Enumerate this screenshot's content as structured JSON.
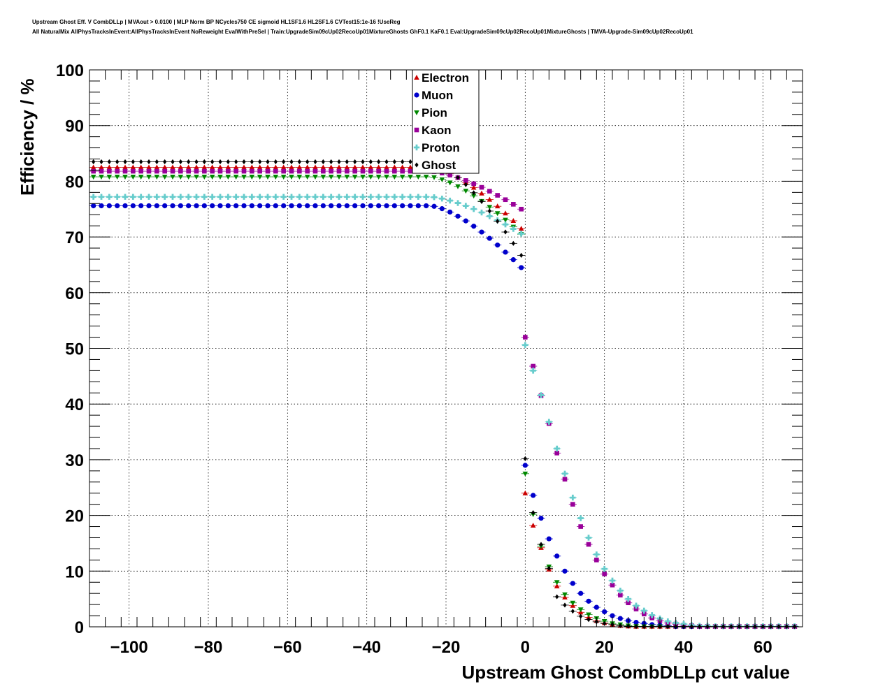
{
  "chart_data": {
    "type": "scatter",
    "title_lines": [
      "Upstream Ghost Eff. V CombDLLp | MVAout > 0.0100 | MLP Norm BP NCycles750 CE sigmoid HL1SF1.6 HL2SF1.6 CVTest15:1e-16 !UseReg",
      "All NaturalMix AllPhysTracksInEvent:AllPhysTracksInEvent NoReweight EvalWithPreSel | Train:UpgradeSim09cUp02RecoUp01MixtureGhosts GhF0.1 KaF0.1 Eval:UpgradeSim09cUp02RecoUp01MixtureGhosts | TMVA-Upgrade-Sim09cUp02RecoUp01"
    ],
    "xlabel": "Upstream Ghost CombDLLp cut value",
    "ylabel": "Efficiency / %",
    "xlim": [
      -110,
      70
    ],
    "ylim": [
      0,
      100
    ],
    "xticks": [
      -100,
      -80,
      -60,
      -40,
      -20,
      0,
      20,
      40,
      60
    ],
    "xtick_labels": [
      "−100",
      "−80",
      "−60",
      "−40",
      "−20",
      "0",
      "20",
      "40",
      "60"
    ],
    "yticks": [
      0,
      10,
      20,
      30,
      40,
      50,
      60,
      70,
      80,
      90,
      100
    ],
    "ytick_labels": [
      "0",
      "10",
      "20",
      "30",
      "40",
      "50",
      "60",
      "70",
      "80",
      "90",
      "100"
    ],
    "grid": true,
    "legend_position": "top-center",
    "series": [
      {
        "name": "Electron",
        "color": "#cc0000",
        "marker": "triangle-up",
        "plateau": 82.5,
        "knee": -24,
        "edge_value": 71.5,
        "y0": 24.0,
        "tail_decay": 3.4,
        "tail_mult": 0.79,
        "tail_points": [
          [
            2,
            18.2
          ],
          [
            4,
            14.2
          ],
          [
            6,
            10.3
          ],
          [
            8,
            7.3
          ],
          [
            10,
            5.3
          ],
          [
            12,
            3.8
          ],
          [
            14,
            2.6
          ],
          [
            16,
            1.7
          ],
          [
            18,
            1.1
          ],
          [
            20,
            0.7
          ],
          [
            22,
            0.4
          ],
          [
            24,
            0.2
          ],
          [
            26,
            0.1
          ]
        ]
      },
      {
        "name": "Muon",
        "color": "#0000cc",
        "marker": "circle",
        "plateau": 75.6,
        "knee": -24,
        "edge_value": 64.5,
        "y0": 29.0,
        "tail_decay": 4.5,
        "tail_mult": 0.81,
        "tail_points": [
          [
            2,
            23.6
          ],
          [
            4,
            19.5
          ],
          [
            6,
            15.8
          ],
          [
            8,
            12.7
          ],
          [
            10,
            10.0
          ],
          [
            12,
            7.8
          ],
          [
            14,
            6.0
          ],
          [
            16,
            4.6
          ],
          [
            18,
            3.5
          ],
          [
            20,
            2.7
          ],
          [
            22,
            2.0
          ],
          [
            24,
            1.5
          ],
          [
            26,
            1.1
          ],
          [
            28,
            0.8
          ],
          [
            30,
            0.6
          ],
          [
            32,
            0.4
          ],
          [
            34,
            0.3
          ],
          [
            36,
            0.2
          ]
        ]
      },
      {
        "name": "Pion",
        "color": "#008800",
        "marker": "triangle-down",
        "plateau": 80.8,
        "knee": -24,
        "edge_value": 70.5,
        "y0": 27.5,
        "tail_decay": 3.5,
        "tail_mult": 0.77,
        "tail_points": [
          [
            2,
            20.2
          ],
          [
            4,
            14.5
          ],
          [
            6,
            10.8
          ],
          [
            8,
            8.0
          ],
          [
            10,
            5.8
          ],
          [
            12,
            4.3
          ],
          [
            14,
            3.1
          ],
          [
            16,
            2.2
          ],
          [
            18,
            1.5
          ],
          [
            20,
            1.0
          ],
          [
            22,
            0.6
          ],
          [
            24,
            0.4
          ],
          [
            26,
            0.2
          ],
          [
            28,
            0.1
          ]
        ]
      },
      {
        "name": "Kaon",
        "color": "#990099",
        "marker": "square",
        "plateau": 81.8,
        "knee": -24,
        "edge_value": 75.0,
        "y0": 52.0,
        "tail_decay": 6.5,
        "tail_mult": 1.0,
        "tail_points": [
          [
            2,
            46.8
          ],
          [
            4,
            41.5
          ],
          [
            6,
            36.5
          ],
          [
            8,
            31.2
          ],
          [
            10,
            26.5
          ],
          [
            12,
            22.0
          ],
          [
            14,
            18.0
          ],
          [
            16,
            14.8
          ],
          [
            18,
            12.0
          ],
          [
            20,
            9.5
          ],
          [
            22,
            7.5
          ],
          [
            24,
            5.7
          ],
          [
            26,
            4.3
          ],
          [
            28,
            3.2
          ],
          [
            30,
            2.3
          ],
          [
            32,
            1.6
          ],
          [
            34,
            1.1
          ],
          [
            36,
            0.7
          ],
          [
            38,
            0.5
          ],
          [
            40,
            0.3
          ],
          [
            42,
            0.2
          ]
        ]
      },
      {
        "name": "Proton",
        "color": "#66cccc",
        "marker": "cross",
        "plateau": 77.2,
        "knee": -24,
        "edge_value": 70.6,
        "y0": 50.6,
        "tail_decay": 7.0,
        "tail_mult": 1.0,
        "tail_points": [
          [
            2,
            46.0
          ],
          [
            4,
            41.6
          ],
          [
            6,
            36.8
          ],
          [
            8,
            32.0
          ],
          [
            10,
            27.5
          ],
          [
            12,
            23.2
          ],
          [
            14,
            19.5
          ],
          [
            16,
            16.0
          ],
          [
            18,
            13.0
          ],
          [
            20,
            10.4
          ],
          [
            22,
            8.3
          ],
          [
            24,
            6.5
          ],
          [
            26,
            5.0
          ],
          [
            28,
            3.8
          ],
          [
            30,
            2.9
          ],
          [
            32,
            2.1
          ],
          [
            34,
            1.5
          ],
          [
            36,
            1.0
          ],
          [
            38,
            0.7
          ],
          [
            40,
            0.5
          ],
          [
            42,
            0.3
          ],
          [
            44,
            0.2
          ],
          [
            46,
            0.2
          ],
          [
            48,
            0.1
          ],
          [
            50,
            0.1
          ],
          [
            52,
            0.1
          ],
          [
            54,
            0.1
          ],
          [
            56,
            0.1
          ],
          [
            58,
            0.1
          ],
          [
            60,
            0.1
          ],
          [
            62,
            0.1
          ],
          [
            64,
            0.1
          ],
          [
            66,
            0.1
          ],
          [
            68,
            0.1
          ]
        ]
      },
      {
        "name": "Ghost",
        "color": "#000000",
        "marker": "diamond",
        "plateau": 83.5,
        "knee": -24,
        "edge_value": 66.7,
        "y0": 30.2,
        "tail_decay": 3.3,
        "tail_mult": 0.71,
        "tail_points": [
          [
            2,
            20.5
          ],
          [
            4,
            14.8
          ],
          [
            6,
            10.5
          ],
          [
            8,
            5.4
          ],
          [
            10,
            3.9
          ],
          [
            12,
            2.8
          ],
          [
            14,
            1.9
          ],
          [
            16,
            1.3
          ],
          [
            18,
            0.9
          ],
          [
            20,
            0.6
          ],
          [
            22,
            0.4
          ],
          [
            24,
            0.2
          ],
          [
            26,
            0.1
          ]
        ]
      }
    ]
  }
}
